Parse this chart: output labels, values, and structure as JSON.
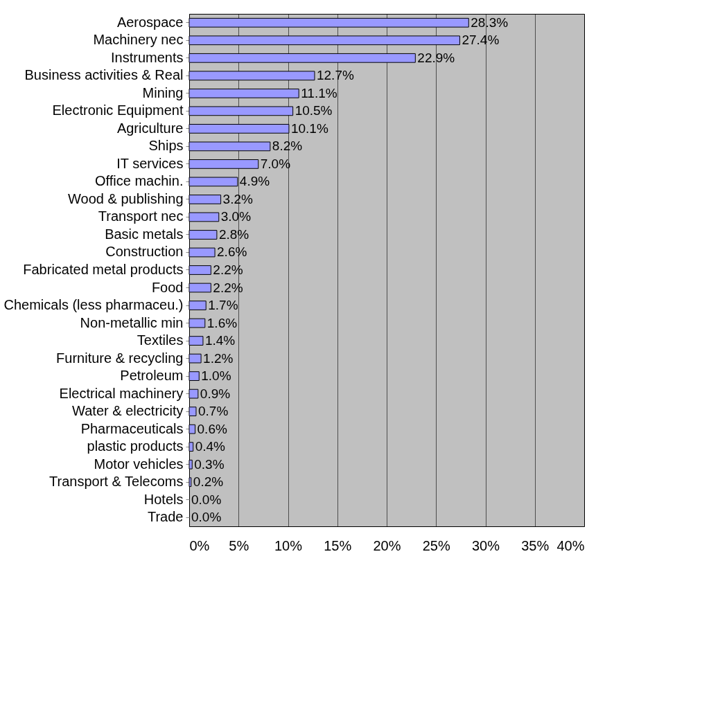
{
  "chart_data": {
    "type": "bar",
    "orientation": "horizontal",
    "categories": [
      "Aerospace",
      "Machinery nec",
      "Instruments",
      "Business activities &  Real",
      "Mining",
      "Electronic Equipment",
      "Agriculture",
      "Ships",
      "IT services",
      "Office machin.",
      "Wood & publishing",
      "Transport nec",
      "Basic metals",
      "Construction",
      "Fabricated metal products",
      "Food",
      "Chemicals (less pharmaceu.)",
      "Non-metallic min",
      "Textiles",
      "Furniture & recycling",
      "Petroleum",
      "Electrical machinery",
      "Water & electricity",
      "Pharmaceuticals",
      "plastic products",
      "Motor vehicles",
      "Transport & Telecoms",
      "Hotels",
      "Trade"
    ],
    "values": [
      28.3,
      27.4,
      22.9,
      12.7,
      11.1,
      10.5,
      10.1,
      8.2,
      7.0,
      4.9,
      3.2,
      3.0,
      2.8,
      2.6,
      2.2,
      2.2,
      1.7,
      1.6,
      1.4,
      1.2,
      1.0,
      0.9,
      0.7,
      0.6,
      0.4,
      0.3,
      0.2,
      0.0,
      0.0
    ],
    "value_labels": [
      "28.3%",
      "27.4%",
      "22.9%",
      "12.7%",
      "11.1%",
      "10.5%",
      "10.1%",
      "8.2%",
      "7.0%",
      "4.9%",
      "3.2%",
      "3.0%",
      "2.8%",
      "2.6%",
      "2.2%",
      "2.2%",
      "1.7%",
      "1.6%",
      "1.4%",
      "1.2%",
      "1.0%",
      "0.9%",
      "0.7%",
      "0.6%",
      "0.4%",
      "0.3%",
      "0.2%",
      "0.0%",
      "0.0%"
    ],
    "color": "#9999ff",
    "xlim": [
      0,
      40
    ],
    "xticks": [
      {
        "value": 0,
        "label": "0%"
      },
      {
        "value": 5,
        "label": "5%"
      },
      {
        "value": 10,
        "label": "10%"
      },
      {
        "value": 15,
        "label": "15%"
      },
      {
        "value": 20,
        "label": "20%"
      },
      {
        "value": 25,
        "label": "25%"
      },
      {
        "value": 30,
        "label": "30%"
      },
      {
        "value": 35,
        "label": "35%"
      },
      {
        "value": 40,
        "label": "40%"
      }
    ],
    "grid": "x"
  }
}
